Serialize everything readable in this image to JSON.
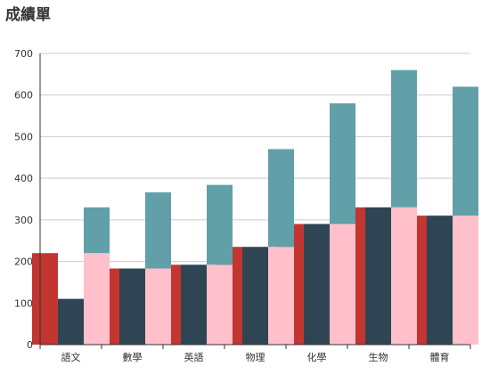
{
  "chart_data": {
    "type": "bar",
    "title": "成績單",
    "categories": [
      "語文",
      "數學",
      "英語",
      "物理",
      "化學",
      "生物",
      "體育"
    ],
    "y_ticks": [
      "0",
      "100",
      "200",
      "300",
      "400",
      "500",
      "600",
      "700"
    ],
    "ylim": [
      0,
      700
    ],
    "grid": true,
    "legend": "none",
    "colors": [
      "#c23531",
      "#2f4554",
      "#ffc0cb",
      "#61a0a8"
    ],
    "series": [
      {
        "values": [
          220,
          183,
          192,
          235,
          290,
          330,
          310
        ],
        "stack": "a",
        "offset": 0
      },
      {
        "values": [
          110,
          183,
          192,
          235,
          290,
          330,
          310
        ],
        "stack": "b",
        "offset": 1
      },
      {
        "values": [
          220,
          183,
          192,
          235,
          290,
          330,
          310
        ],
        "stack": "c",
        "offset": 2
      },
      {
        "values": [
          110,
          183,
          192,
          235,
          290,
          330,
          310
        ],
        "stack": "c",
        "offset": 2
      }
    ]
  }
}
